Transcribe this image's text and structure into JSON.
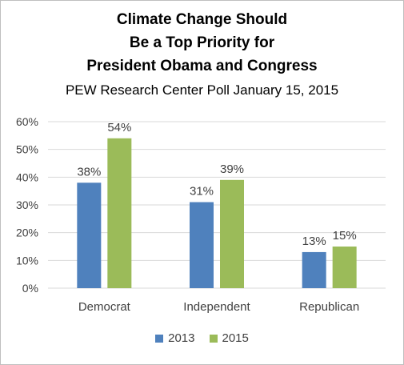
{
  "chart_data": {
    "type": "bar",
    "title_lines": [
      "Climate Change Should",
      "Be a Top Priority for",
      "President Obama and Congress"
    ],
    "subtitle": "PEW Research Center Poll January 15, 2015",
    "categories": [
      "Democrat",
      "Independent",
      "Republican"
    ],
    "series": [
      {
        "name": "2013",
        "values": [
          38,
          31,
          13
        ],
        "color": "#4f81bd",
        "labels": [
          "38%",
          "31%",
          "13%"
        ]
      },
      {
        "name": "2015",
        "values": [
          54,
          39,
          15
        ],
        "color": "#9bbb59",
        "labels": [
          "54%",
          "39%",
          "15%"
        ]
      }
    ],
    "ylim": [
      0,
      60
    ],
    "yticks": [
      0,
      10,
      20,
      30,
      40,
      50,
      60
    ],
    "ytick_labels": [
      "0%",
      "10%",
      "20%",
      "30%",
      "40%",
      "50%",
      "60%"
    ],
    "grid": true,
    "legend_position": "bottom",
    "xlabel": "",
    "ylabel": ""
  }
}
